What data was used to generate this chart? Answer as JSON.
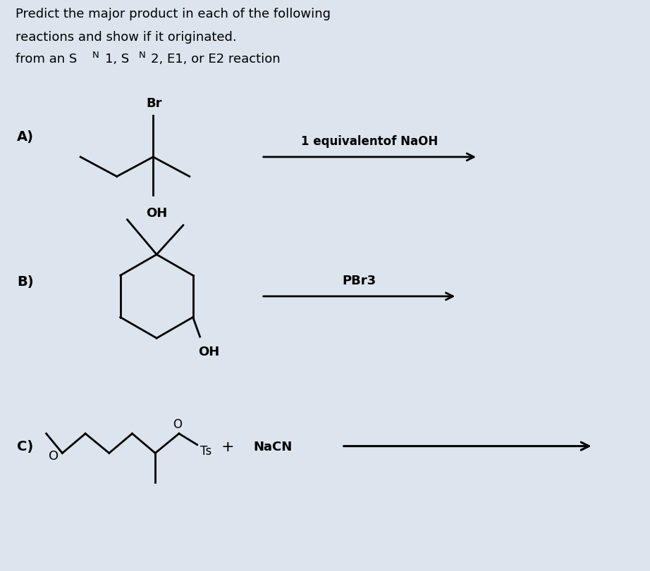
{
  "bg_color": "#dce4ed",
  "text_color": "#000000",
  "label_A": "A)",
  "label_B": "B)",
  "label_C": "C)",
  "reagent_A": "1 equivalentof NaOH",
  "reagent_B": "PBr3",
  "lw": 2.0
}
